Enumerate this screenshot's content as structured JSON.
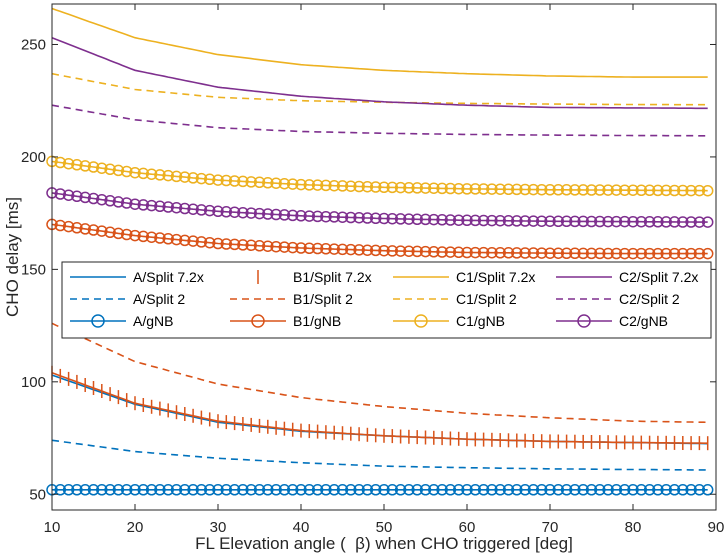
{
  "chart_data": {
    "type": "line",
    "title": "",
    "xlabel": "FL Elevation angle (  β) when CHO triggered [deg]",
    "ylabel": "CHO delay [ms]",
    "xlim": [
      10,
      90
    ],
    "ylim": [
      43,
      268
    ],
    "xticks": [
      10,
      20,
      30,
      40,
      50,
      60,
      70,
      80,
      90
    ],
    "yticks": [
      50,
      100,
      150,
      200,
      250
    ],
    "grid": false,
    "legend_position": "middle",
    "colors": {
      "A": "#0072BD",
      "B1": "#D95319",
      "C1": "#EDB120",
      "C2": "#7E2F8E",
      "axis": "#262626"
    },
    "series": [
      {
        "name": "A/Split 7.2x",
        "group": "A",
        "style": "solid",
        "marker": "none",
        "x": [
          10,
          20,
          30,
          40,
          50,
          60,
          70,
          80,
          89
        ],
        "values": [
          103,
          90,
          82,
          78,
          76,
          74.5,
          73.5,
          73,
          72.5
        ]
      },
      {
        "name": "A/Split 2",
        "group": "A",
        "style": "dashed",
        "marker": "none",
        "x": [
          10,
          20,
          30,
          40,
          50,
          60,
          70,
          80,
          89
        ],
        "values": [
          74,
          69,
          66,
          64,
          62.5,
          61.8,
          61.3,
          61,
          60.8
        ]
      },
      {
        "name": "A/gNB",
        "group": "A",
        "style": "solid",
        "marker": "circle",
        "x": [
          10,
          20,
          30,
          40,
          50,
          60,
          70,
          80,
          89
        ],
        "values": [
          52,
          52,
          52,
          52,
          52,
          52,
          52,
          52,
          52
        ]
      },
      {
        "name": "B1/Split 7.2x",
        "group": "B1",
        "style": "solid",
        "marker": "vbar",
        "x": [
          10,
          20,
          30,
          40,
          50,
          60,
          70,
          80,
          89
        ],
        "values": [
          104,
          90.5,
          82.5,
          78.3,
          76,
          74.5,
          73.5,
          73,
          72.7
        ]
      },
      {
        "name": "B1/Split 2",
        "group": "B1",
        "style": "dashed",
        "marker": "none",
        "x": [
          10,
          20,
          30,
          40,
          50,
          60,
          70,
          80,
          89
        ],
        "values": [
          126,
          109,
          99,
          93,
          89,
          86,
          84,
          82.5,
          82
        ]
      },
      {
        "name": "B1/gNB",
        "group": "B1",
        "style": "solid",
        "marker": "circle",
        "x": [
          10,
          20,
          30,
          40,
          50,
          60,
          70,
          80,
          89
        ],
        "values": [
          170,
          165,
          161.5,
          159.5,
          158.3,
          157.5,
          157.2,
          157,
          157
        ]
      },
      {
        "name": "C1/Split 7.2x",
        "group": "C1",
        "style": "solid",
        "marker": "none",
        "x": [
          10,
          20,
          30,
          40,
          50,
          60,
          70,
          80,
          89
        ],
        "values": [
          266,
          253,
          245.5,
          241,
          238.5,
          237,
          236,
          235.5,
          235.5
        ]
      },
      {
        "name": "C1/Split 2",
        "group": "C1",
        "style": "dashed",
        "marker": "none",
        "x": [
          10,
          20,
          30,
          40,
          50,
          60,
          70,
          80,
          89
        ],
        "values": [
          237,
          230,
          226.5,
          225,
          224.3,
          223.8,
          223.5,
          223.3,
          223.2
        ]
      },
      {
        "name": "C1/gNB",
        "group": "C1",
        "style": "solid",
        "marker": "circle",
        "x": [
          10,
          20,
          30,
          40,
          50,
          60,
          70,
          80,
          89
        ],
        "values": [
          198,
          193,
          189.7,
          187.7,
          186.5,
          185.8,
          185.4,
          185.2,
          185
        ]
      },
      {
        "name": "C2/Split 7.2x",
        "group": "C2",
        "style": "solid",
        "marker": "none",
        "x": [
          10,
          20,
          30,
          40,
          50,
          60,
          70,
          80,
          89
        ],
        "values": [
          253,
          238.5,
          231,
          227,
          224.5,
          223,
          222,
          221.8,
          221.6
        ]
      },
      {
        "name": "C2/Split 2",
        "group": "C2",
        "style": "dashed",
        "marker": "none",
        "x": [
          10,
          20,
          30,
          40,
          50,
          60,
          70,
          80,
          89
        ],
        "values": [
          223,
          216.5,
          213,
          211.3,
          210.5,
          210,
          209.7,
          209.5,
          209.4
        ]
      },
      {
        "name": "C2/gNB",
        "group": "C2",
        "style": "solid",
        "marker": "circle",
        "x": [
          10,
          20,
          30,
          40,
          50,
          60,
          70,
          80,
          89
        ],
        "values": [
          184,
          179,
          175.8,
          173.8,
          172.6,
          171.8,
          171.4,
          171.2,
          171
        ]
      }
    ]
  }
}
